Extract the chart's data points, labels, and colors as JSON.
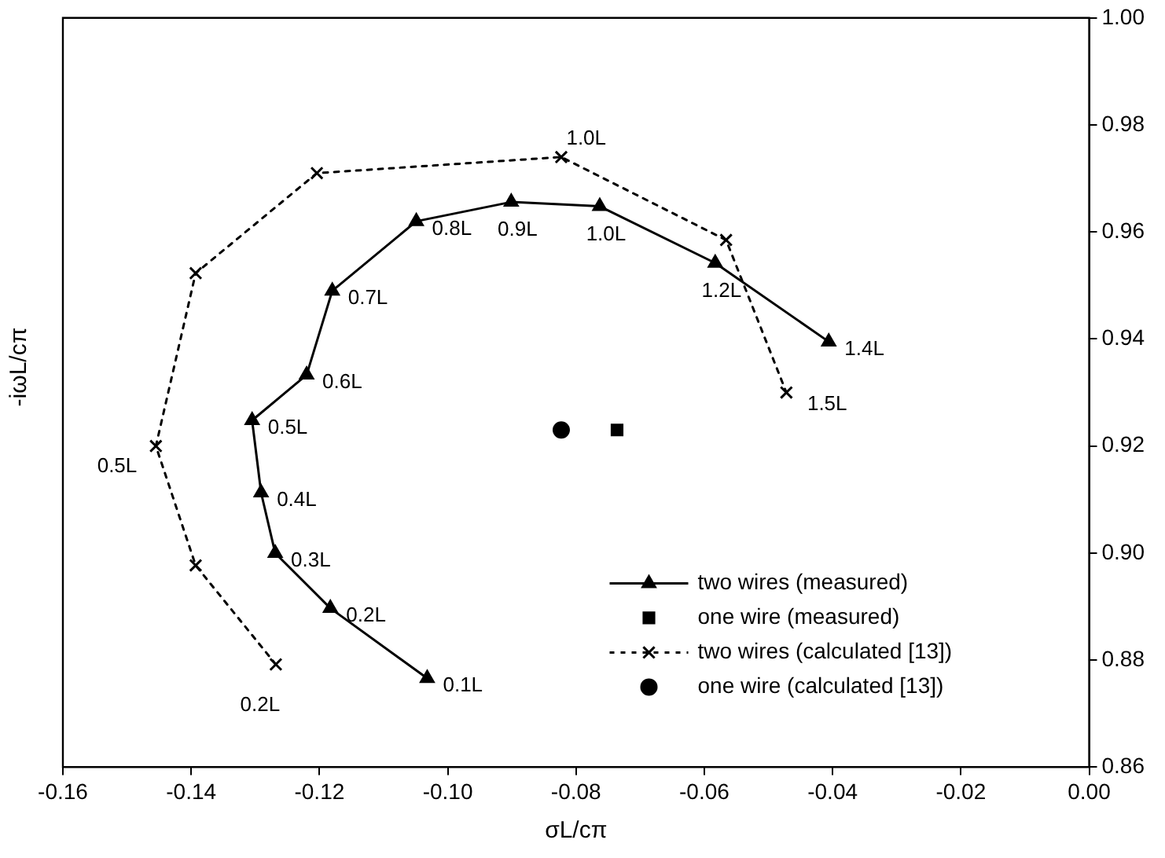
{
  "chart_data": {
    "type": "line",
    "xlabel": "σL/cπ",
    "ylabel": "-iωL/cπ",
    "xlim": [
      -0.16,
      0
    ],
    "xticks": [
      {
        "value": -0.16,
        "label": "-0.16"
      },
      {
        "value": -0.14,
        "label": "-0.14"
      },
      {
        "value": -0.12,
        "label": "-0.12"
      },
      {
        "value": -0.1,
        "label": "-0.10"
      },
      {
        "value": -0.08,
        "label": "-0.08"
      },
      {
        "value": -0.06,
        "label": "-0.06"
      },
      {
        "value": -0.04,
        "label": "-0.04"
      },
      {
        "value": -0.02,
        "label": "-0.02"
      },
      {
        "value": 0,
        "label": "0.00"
      }
    ],
    "ylim": [
      0.86,
      1.0
    ],
    "yticks": [
      {
        "value": 0.86,
        "label": "0.86"
      },
      {
        "value": 0.88,
        "label": "0.88"
      },
      {
        "value": 0.9,
        "label": "0.90"
      },
      {
        "value": 0.92,
        "label": "0.92"
      },
      {
        "value": 0.94,
        "label": "0.94"
      },
      {
        "value": 0.96,
        "label": "0.96"
      },
      {
        "value": 0.98,
        "label": "0.98"
      },
      {
        "value": 1.0,
        "label": "1.00"
      }
    ],
    "grid": false,
    "legend": "bottom right",
    "series": [
      {
        "name": "two wires (measured)",
        "color": "#000000",
        "marker": "triangle",
        "line_style": "solid",
        "x": [
          -0.1032,
          -0.1183,
          -0.1269,
          -0.1291,
          -0.1305,
          -0.122,
          -0.118,
          -0.1049,
          -0.0901,
          -0.0763,
          -0.0583,
          -0.0406
        ],
        "values": [
          0.8766,
          0.8897,
          0.9,
          0.9113,
          0.9248,
          0.9333,
          0.949,
          0.962,
          0.9656,
          0.9648,
          0.9542,
          0.9395
        ]
      },
      {
        "name": "one wire (measured)",
        "type": "scatter",
        "color": "#000000",
        "marker": "square",
        "x": [
          -0.0736
        ],
        "values": [
          0.923
        ]
      },
      {
        "name": "two wires (calculated [13])",
        "color": "#000000",
        "marker": "cross",
        "line_style": "dotted",
        "x": [
          -0.1268,
          -0.1393,
          -0.1455,
          -0.1393,
          -0.1204,
          -0.0823,
          -0.0566,
          -0.0472
        ],
        "values": [
          0.8792,
          0.8977,
          0.92,
          0.9523,
          0.971,
          0.974,
          0.9585,
          0.93
        ]
      },
      {
        "name": "one wire (calculated [13])",
        "type": "scatter",
        "color": "#000000",
        "marker": "circle",
        "x": [
          -0.0823
        ],
        "values": [
          0.923
        ]
      }
    ],
    "annotations": [
      {
        "text": "0.1L",
        "x": -0.1032,
        "y": 0.8766
      },
      {
        "text": "0.2L",
        "x": -0.1183,
        "y": 0.8897
      },
      {
        "text": "0.3L",
        "x": -0.1269,
        "y": 0.9
      },
      {
        "text": "0.4L",
        "x": -0.1291,
        "y": 0.9113
      },
      {
        "text": "0.5L",
        "x": -0.1305,
        "y": 0.9248
      },
      {
        "text": "0.6L",
        "x": -0.122,
        "y": 0.9333
      },
      {
        "text": "0.7L",
        "x": -0.118,
        "y": 0.949
      },
      {
        "text": "0.8L",
        "x": -0.1049,
        "y": 0.962
      },
      {
        "text": "0.9L",
        "x": -0.0901,
        "y": 0.9656
      },
      {
        "text": "1.0L",
        "x": -0.0763,
        "y": 0.9648
      },
      {
        "text": "1.2L",
        "x": -0.0583,
        "y": 0.9542
      },
      {
        "text": "1.4L",
        "x": -0.0406,
        "y": 0.9395
      },
      {
        "text": "0.2L",
        "x": -0.1268,
        "y": 0.8792
      },
      {
        "text": "0.5L",
        "x": -0.1455,
        "y": 0.92
      },
      {
        "text": "1.0L",
        "x": -0.0823,
        "y": 0.974
      },
      {
        "text": "1.5L",
        "x": -0.0472,
        "y": 0.93
      }
    ]
  }
}
